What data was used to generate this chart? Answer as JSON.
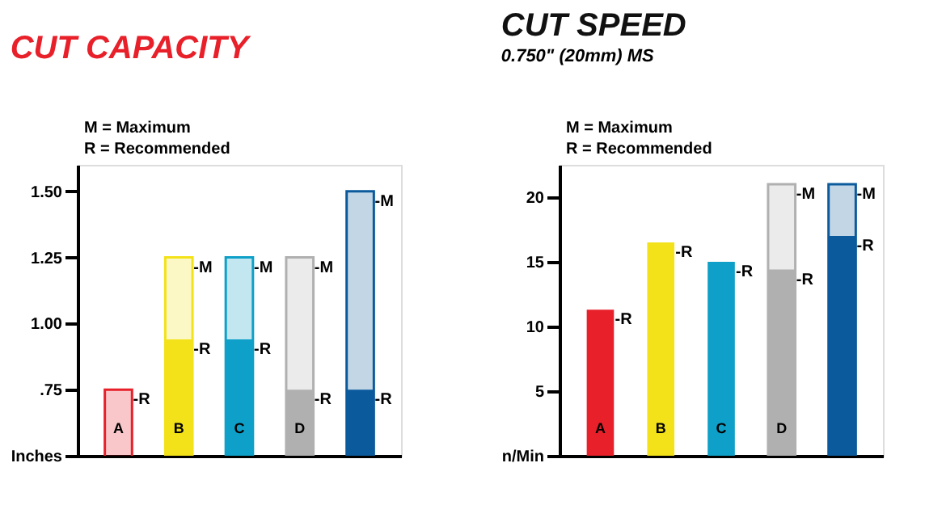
{
  "chart_data": [
    {
      "type": "bar",
      "title": "CUT CAPACITY",
      "categories": [
        "A",
        "B",
        "C",
        "D",
        null
      ],
      "series": [
        {
          "colors": [
            "#e8202a",
            "#f3e21a",
            "#0ea0c8",
            "#b0b0b0",
            "#0b5a9c"
          ],
          "values": [
            0.75,
            1.25,
            1.25,
            1.25,
            1.5
          ],
          "value_labels": [
            "-R",
            "-M",
            "-M",
            "-M",
            "-M"
          ]
        },
        {
          "colors": [
            "#e8202a",
            "#f3e21a",
            "#0ea0c8",
            "#b0b0b0",
            "#0b5a9c"
          ],
          "values": [
            null,
            0.94,
            0.94,
            0.75,
            0.75
          ],
          "value_labels": [
            null,
            "-R",
            "-R",
            "-R",
            "-R"
          ]
        }
      ],
      "ylim": [
        0.5,
        1.6
      ],
      "yticks": [
        {
          "value": 0.5,
          "label": "Inches"
        },
        {
          "value": 0.75,
          "label": ".75"
        },
        {
          "value": 1.0,
          "label": "1.00"
        },
        {
          "value": 1.25,
          "label": "1.25"
        },
        {
          "value": 1.5,
          "label": "1.50"
        }
      ],
      "annotations": [
        "M = Maximum",
        "R = Recommended"
      ]
    },
    {
      "type": "bar",
      "title": "CUT SPEED",
      "subtitle": "0.750\" (20mm) MS",
      "categories": [
        "A",
        "B",
        "C",
        "D",
        null
      ],
      "series": [
        {
          "colors": [
            "#e8202a",
            "#f3e21a",
            "#0ea0c8",
            "#b0b0b0",
            "#0b5a9c"
          ],
          "values": [
            null,
            null,
            null,
            21.0,
            21.0
          ],
          "value_labels": [
            null,
            null,
            null,
            "-M",
            "-M"
          ]
        },
        {
          "colors": [
            "#e8202a",
            "#f3e21a",
            "#0ea0c8",
            "#b0b0b0",
            "#0b5a9c"
          ],
          "values": [
            11.3,
            16.5,
            15.0,
            14.4,
            17.0
          ],
          "value_labels": [
            "-R",
            "-R",
            "-R",
            "-R",
            "-R"
          ]
        }
      ],
      "ylim": [
        0,
        22.5
      ],
      "yticks": [
        {
          "value": 0,
          "label": "n/Min"
        },
        5,
        10,
        15,
        20
      ],
      "annotations": [
        "M = Maximum",
        "R = Recommended"
      ]
    }
  ]
}
